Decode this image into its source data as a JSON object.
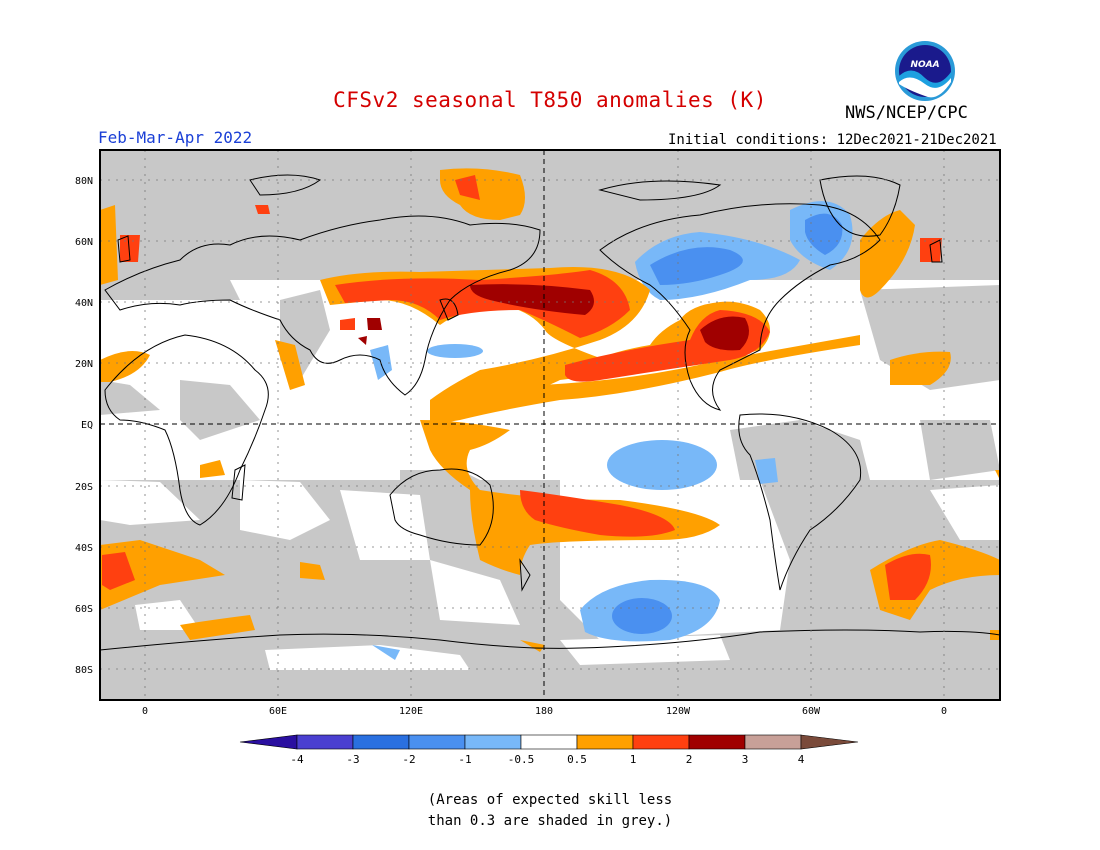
{
  "header": {
    "title": "CFSv2 seasonal T850 anomalies (K)",
    "agency": "NWS/NCEP/CPC",
    "logo_text": "NOAA",
    "period": "Feb-Mar-Apr 2022",
    "initial_conditions": "Initial conditions: 12Dec2021-21Dec2021"
  },
  "map": {
    "lat_labels": [
      "80N",
      "60N",
      "40N",
      "20N",
      "EQ",
      "20S",
      "40S",
      "60S",
      "80S"
    ],
    "lon_labels": [
      "0",
      "60E",
      "120E",
      "180",
      "120W",
      "60W",
      "0"
    ],
    "colors": {
      "skill_grey": "#c8c8c8",
      "ocean_land_bg": "#ffffff",
      "coast": "#000000"
    }
  },
  "colorbar": {
    "labels": [
      "-4",
      "-3",
      "-2",
      "-1",
      "-0.5",
      "0.5",
      "1",
      "2",
      "3",
      "4"
    ],
    "colors": [
      "#2a0fa0",
      "#4a3fd0",
      "#2a70e0",
      "#4a90f0",
      "#78b8f8",
      "#ffffff",
      "#ffa000",
      "#ff4010",
      "#a00000",
      "#c8a098",
      "#7a4a3a"
    ]
  },
  "footnote": {
    "line1": "(Areas of expected skill less",
    "line2": "than 0.3 are shaded in grey.)"
  }
}
